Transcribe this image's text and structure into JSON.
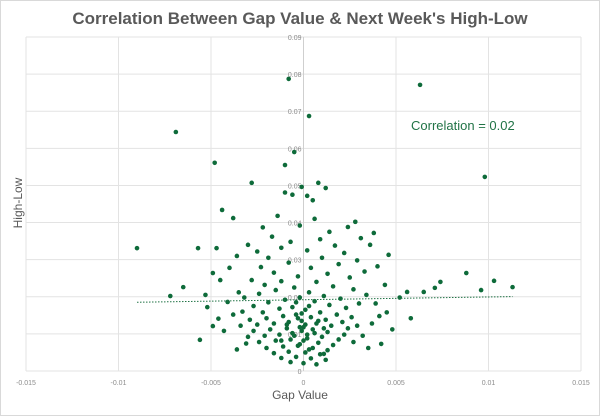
{
  "chart_data": {
    "type": "scatter",
    "title": "Correlation Between Gap Value & Next Week's High-Low",
    "xlabel": "Gap Value",
    "ylabel": "High-Low",
    "xlim": [
      -0.015,
      0.015
    ],
    "ylim": [
      0,
      0.09
    ],
    "xticks": [
      "-0.015",
      "-0.01",
      "-0.005",
      "0",
      "0.005",
      "0.01",
      "0.015"
    ],
    "xtick_values": [
      -0.015,
      -0.01,
      -0.005,
      0,
      0.005,
      0.01,
      0.015
    ],
    "yticks": [
      "0",
      "0.01",
      "0.02",
      "0.03",
      "0.04",
      "0.05",
      "0.06",
      "0.07",
      "0.08",
      "0.09"
    ],
    "ytick_values": [
      0,
      0.01,
      0.02,
      0.03,
      0.04,
      0.05,
      0.06,
      0.07,
      0.08,
      0.09
    ],
    "grid": true,
    "annotation": "Correlation = 0.02",
    "marker_color": "#0e6b3a",
    "trendline": {
      "type": "linear",
      "intercept": 0.0192,
      "slope": 0.075,
      "color": "#217346"
    },
    "points": [
      [
        -0.009,
        0.0331
      ],
      [
        -0.0069,
        0.0644
      ],
      [
        -0.0048,
        0.0561
      ],
      [
        0.0063,
        0.0771
      ],
      [
        0.0098,
        0.0523
      ],
      [
        -0.0008,
        0.0787
      ],
      [
        0.0003,
        0.0687
      ],
      [
        -0.0005,
        0.059
      ],
      [
        -0.001,
        0.0555
      ],
      [
        -0.0028,
        0.0507
      ],
      [
        -0.0044,
        0.0434
      ],
      [
        -0.0038,
        0.0412
      ],
      [
        -0.0057,
        0.0331
      ],
      [
        -0.0047,
        0.0331
      ],
      [
        -0.0049,
        0.0264
      ],
      [
        -0.0065,
        0.0226
      ],
      [
        -0.0072,
        0.0202
      ],
      [
        -0.0049,
        0.0121
      ],
      [
        -0.0056,
        0.0084
      ],
      [
        0.0046,
        0.0313
      ],
      [
        0.0056,
        0.0213
      ],
      [
        0.0065,
        0.0213
      ],
      [
        0.0074,
        0.024
      ],
      [
        0.0088,
        0.0264
      ],
      [
        0.0096,
        0.0218
      ],
      [
        0.0103,
        0.0243
      ],
      [
        0.0113,
        0.0226
      ],
      [
        0.0071,
        0.0224
      ],
      [
        0.0041,
        0.0148
      ],
      [
        0.0042,
        0.0073
      ],
      [
        0.0008,
        0.0507
      ],
      [
        0.0012,
        0.0493
      ],
      [
        -0.0001,
        0.0496
      ],
      [
        0.0002,
        0.0472
      ],
      [
        -0.0006,
        0.0475
      ],
      [
        0.0005,
        0.046
      ],
      [
        -0.001,
        0.0481
      ],
      [
        0.0024,
        0.0388
      ],
      [
        0.0028,
        0.0402
      ],
      [
        -0.0002,
        0.0392
      ],
      [
        0.0006,
        0.041
      ],
      [
        -0.0014,
        0.0418
      ],
      [
        -0.0022,
        0.0387
      ],
      [
        -0.0017,
        0.0362
      ],
      [
        0.0014,
        0.0375
      ],
      [
        0.0031,
        0.0358
      ],
      [
        0.0038,
        0.0372
      ],
      [
        0.0036,
        0.034
      ],
      [
        -0.003,
        0.034
      ],
      [
        -0.0025,
        0.0322
      ],
      [
        -0.0036,
        0.031
      ],
      [
        -0.004,
        0.0278
      ],
      [
        -0.0045,
        0.0245
      ],
      [
        -0.0035,
        0.0212
      ],
      [
        -0.0041,
        0.0186
      ],
      [
        -0.0038,
        0.0152
      ],
      [
        -0.0043,
        0.0108
      ],
      [
        -0.0031,
        0.0074
      ],
      [
        0.0032,
        0.0095
      ],
      [
        0.0037,
        0.0128
      ],
      [
        0.0039,
        0.0182
      ],
      [
        0.0044,
        0.0232
      ],
      [
        0.0033,
        0.0268
      ],
      [
        0.0029,
        0.0298
      ],
      [
        0.0022,
        0.0318
      ],
      [
        0.0017,
        0.0338
      ],
      [
        0.0009,
        0.0355
      ],
      [
        -0.0007,
        0.0348
      ],
      [
        -0.0012,
        0.0332
      ],
      [
        -0.0019,
        0.0305
      ],
      [
        0.0002,
        0.0325
      ],
      [
        0.001,
        0.0305
      ],
      [
        0.0019,
        0.0288
      ],
      [
        -0.0023,
        0.028
      ],
      [
        -0.0016,
        0.0265
      ],
      [
        -0.0008,
        0.0292
      ],
      [
        0.0004,
        0.0278
      ],
      [
        0.0013,
        0.0262
      ],
      [
        0.0025,
        0.0252
      ],
      [
        -0.0028,
        0.0245
      ],
      [
        -0.0021,
        0.0232
      ],
      [
        -0.0012,
        0.0242
      ],
      [
        -0.0003,
        0.0255
      ],
      [
        0.0007,
        0.024
      ],
      [
        0.0016,
        0.0228
      ],
      [
        0.0027,
        0.022
      ],
      [
        0.0034,
        0.0205
      ],
      [
        -0.0032,
        0.0198
      ],
      [
        -0.0024,
        0.0208
      ],
      [
        -0.0015,
        0.0218
      ],
      [
        -0.0005,
        0.0225
      ],
      [
        0.0003,
        0.0212
      ],
      [
        0.0011,
        0.0202
      ],
      [
        0.002,
        0.0195
      ],
      [
        0.003,
        0.0182
      ],
      [
        -0.0027,
        0.0175
      ],
      [
        -0.0019,
        0.0185
      ],
      [
        -0.001,
        0.0192
      ],
      [
        -0.0002,
        0.0198
      ],
      [
        0.0006,
        0.0188
      ],
      [
        0.0014,
        0.0178
      ],
      [
        0.0023,
        0.017
      ],
      [
        -0.0033,
        0.016
      ],
      [
        -0.0022,
        0.0158
      ],
      [
        -0.0013,
        0.0168
      ],
      [
        -0.0006,
        0.0172
      ],
      [
        0.0001,
        0.0165
      ],
      [
        0.0009,
        0.0158
      ],
      [
        0.0018,
        0.0152
      ],
      [
        0.0026,
        0.0145
      ],
      [
        -0.0029,
        0.0138
      ],
      [
        -0.002,
        0.0142
      ],
      [
        -0.0011,
        0.0148
      ],
      [
        -0.0004,
        0.0152
      ],
      [
        0.0004,
        0.0145
      ],
      [
        0.0012,
        0.0138
      ],
      [
        0.0021,
        0.0132
      ],
      [
        0.0029,
        0.0122
      ],
      [
        -0.0034,
        0.0122
      ],
      [
        -0.0025,
        0.0125
      ],
      [
        -0.0016,
        0.0128
      ],
      [
        -0.0008,
        0.0132
      ],
      [
        -0.0001,
        0.0135
      ],
      [
        0.0007,
        0.0128
      ],
      [
        0.0015,
        0.0122
      ],
      [
        0.0024,
        0.0115
      ],
      [
        -0.0027,
        0.0108
      ],
      [
        -0.0018,
        0.0112
      ],
      [
        -0.0009,
        0.0115
      ],
      [
        -0.0002,
        0.0118
      ],
      [
        0.0005,
        0.0112
      ],
      [
        0.0013,
        0.0105
      ],
      [
        0.0022,
        0.0098
      ],
      [
        -0.003,
        0.0092
      ],
      [
        -0.0021,
        0.0095
      ],
      [
        -0.0013,
        0.0098
      ],
      [
        -0.0006,
        0.0102
      ],
      [
        0.0002,
        0.0098
      ],
      [
        0.001,
        0.0092
      ],
      [
        0.0019,
        0.0085
      ],
      [
        0.0027,
        0.0078
      ],
      [
        -0.0024,
        0.0078
      ],
      [
        -0.0015,
        0.0082
      ],
      [
        -0.0007,
        0.0085
      ],
      [
        0.0,
        0.0082
      ],
      [
        0.0008,
        0.0076
      ],
      [
        0.0016,
        0.007
      ],
      [
        -0.002,
        0.0062
      ],
      [
        -0.0011,
        0.0066
      ],
      [
        -0.0003,
        0.0068
      ],
      [
        0.0005,
        0.0062
      ],
      [
        0.0013,
        0.0056
      ],
      [
        -0.0016,
        0.0048
      ],
      [
        -0.0008,
        0.0052
      ],
      [
        0.0001,
        0.005
      ],
      [
        0.0009,
        0.0045
      ],
      [
        -0.0012,
        0.0035
      ],
      [
        -0.0004,
        0.0038
      ],
      [
        0.0004,
        0.0034
      ],
      [
        0.0012,
        0.003
      ],
      [
        -0.0007,
        0.0024
      ],
      [
        0.0,
        0.0021
      ],
      [
        0.0007,
        0.0018
      ],
      [
        0.0011,
        0.0046
      ],
      [
        -0.0001,
        0.0108
      ],
      [
        -0.0003,
        0.0142
      ],
      [
        0.0003,
        0.0175
      ],
      [
        -0.0004,
        0.0185
      ],
      [
        0.0001,
        0.0125
      ],
      [
        0.0002,
        0.0088
      ],
      [
        -0.0002,
        0.0072
      ],
      [
        0.0003,
        0.0058
      ],
      [
        -0.0001,
        0.0155
      ],
      [
        0.0,
        0.0118
      ],
      [
        -0.0005,
        0.0095
      ],
      [
        0.0006,
        0.0102
      ],
      [
        -0.0009,
        0.0125
      ],
      [
        0.0008,
        0.0135
      ],
      [
        -0.0012,
        0.0082
      ],
      [
        0.0011,
        0.0115
      ],
      [
        0.0045,
        0.0158
      ],
      [
        0.0048,
        0.0112
      ],
      [
        0.0052,
        0.0198
      ],
      [
        -0.0052,
        0.0172
      ],
      [
        -0.0053,
        0.0205
      ],
      [
        -0.0046,
        0.0141
      ],
      [
        0.0058,
        0.0142
      ],
      [
        0.0035,
        0.0062
      ],
      [
        -0.0036,
        0.0058
      ],
      [
        0.004,
        0.0282
      ]
    ]
  }
}
